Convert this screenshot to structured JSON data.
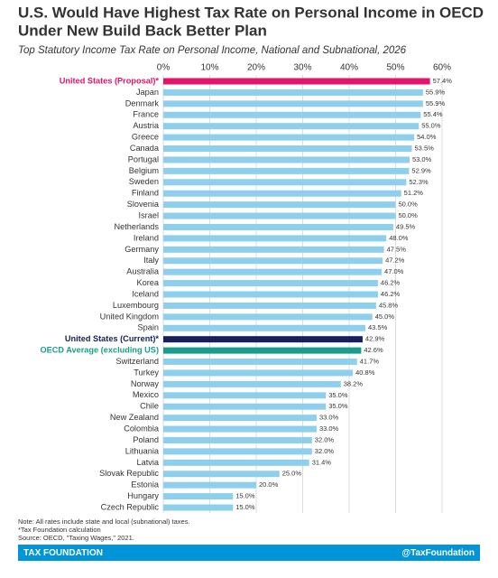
{
  "chart_data": {
    "type": "hbar",
    "title": [
      "U.S. Would Have Highest Tax Rate on Personal Income in OECD",
      "Under New Build Back Better Plan"
    ],
    "subtitle": "Top Statutory Income Tax Rate on Personal Income, National and Subnational, 2026",
    "categories": [
      "United States (Proposal)*",
      "Japan",
      "Denmark",
      "France",
      "Austria",
      "Greece",
      "Canada",
      "Portugal",
      "Belgium",
      "Sweden",
      "Finland",
      "Slovenia",
      "Israel",
      "Netherlands",
      "Ireland",
      "Germany",
      "Italy",
      "Australia",
      "Korea",
      "Iceland",
      "Luxembourg",
      "United Kingdom",
      "Spain",
      "United States (Current)*",
      "OECD Average (excluding US)",
      "Switzerland",
      "Turkey",
      "Norway",
      "Mexico",
      "Chile",
      "New Zealand",
      "Colombia",
      "Poland",
      "Lithuania",
      "Latvia",
      "Slovak Republic",
      "Estonia",
      "Hungary",
      "Czech Republic"
    ],
    "values": [
      57.4,
      55.9,
      55.9,
      55.4,
      55.0,
      54.0,
      53.5,
      53.0,
      52.9,
      52.3,
      51.2,
      50.0,
      50.0,
      49.5,
      48.0,
      47.5,
      47.2,
      47.0,
      46.2,
      46.2,
      45.8,
      45.0,
      43.5,
      42.9,
      42.6,
      41.7,
      40.8,
      38.2,
      35.0,
      35.0,
      33.0,
      33.0,
      32.0,
      32.0,
      31.4,
      25.0,
      20.0,
      15.0,
      15.0
    ],
    "value_labels": [
      "57.4%",
      "55.9%",
      "55.9%",
      "55.4%",
      "55.0%",
      "54.0%",
      "53.5%",
      "53.0%",
      "52.9%",
      "52.3%",
      "51.2%",
      "50.0%",
      "50.0%",
      "49.5%",
      "48.0%",
      "47.5%",
      "47.2%",
      "47.0%",
      "46.2%",
      "46.2%",
      "45.8%",
      "45.0%",
      "43.5%",
      "42.9%",
      "42.6%",
      "41.7%",
      "40.8%",
      "38.2%",
      "35.0%",
      "35.0%",
      "33.0%",
      "33.0%",
      "32.0%",
      "32.0%",
      "31.4%",
      "25.0%",
      "20.0%",
      "15.0%",
      "15.0%"
    ],
    "color": "#8dcfec",
    "colors": [
      "#e3146a",
      "#8dcfec",
      "#8dcfec",
      "#8dcfec",
      "#8dcfec",
      "#8dcfec",
      "#8dcfec",
      "#8dcfec",
      "#8dcfec",
      "#8dcfec",
      "#8dcfec",
      "#8dcfec",
      "#8dcfec",
      "#8dcfec",
      "#8dcfec",
      "#8dcfec",
      "#8dcfec",
      "#8dcfec",
      "#8dcfec",
      "#8dcfec",
      "#8dcfec",
      "#8dcfec",
      "#8dcfec",
      "#15205c",
      "#1a9c8c",
      "#8dcfec",
      "#8dcfec",
      "#8dcfec",
      "#8dcfec",
      "#8dcfec",
      "#8dcfec",
      "#8dcfec",
      "#8dcfec",
      "#8dcfec",
      "#8dcfec",
      "#8dcfec",
      "#8dcfec",
      "#8dcfec",
      "#8dcfec"
    ],
    "xlim": [
      0,
      60
    ],
    "xticks": [
      {
        "value": 0,
        "label": "0%"
      },
      {
        "value": 10,
        "label": "10%"
      },
      {
        "value": 20,
        "label": "20%"
      },
      {
        "value": 30,
        "label": "30%"
      },
      {
        "value": 40,
        "label": "40%"
      },
      {
        "value": 50,
        "label": "50%"
      },
      {
        "value": 60,
        "label": "60%"
      }
    ],
    "grid": true,
    "notes": [
      "Note: All rates include state and local (subnational) taxes.",
      "*Tax Foundation calculation",
      "Source: OECD, \"Taxing Wages,\" 2021."
    ],
    "footer": {
      "left": "TAX FOUNDATION",
      "right": "@TaxFoundation"
    }
  }
}
